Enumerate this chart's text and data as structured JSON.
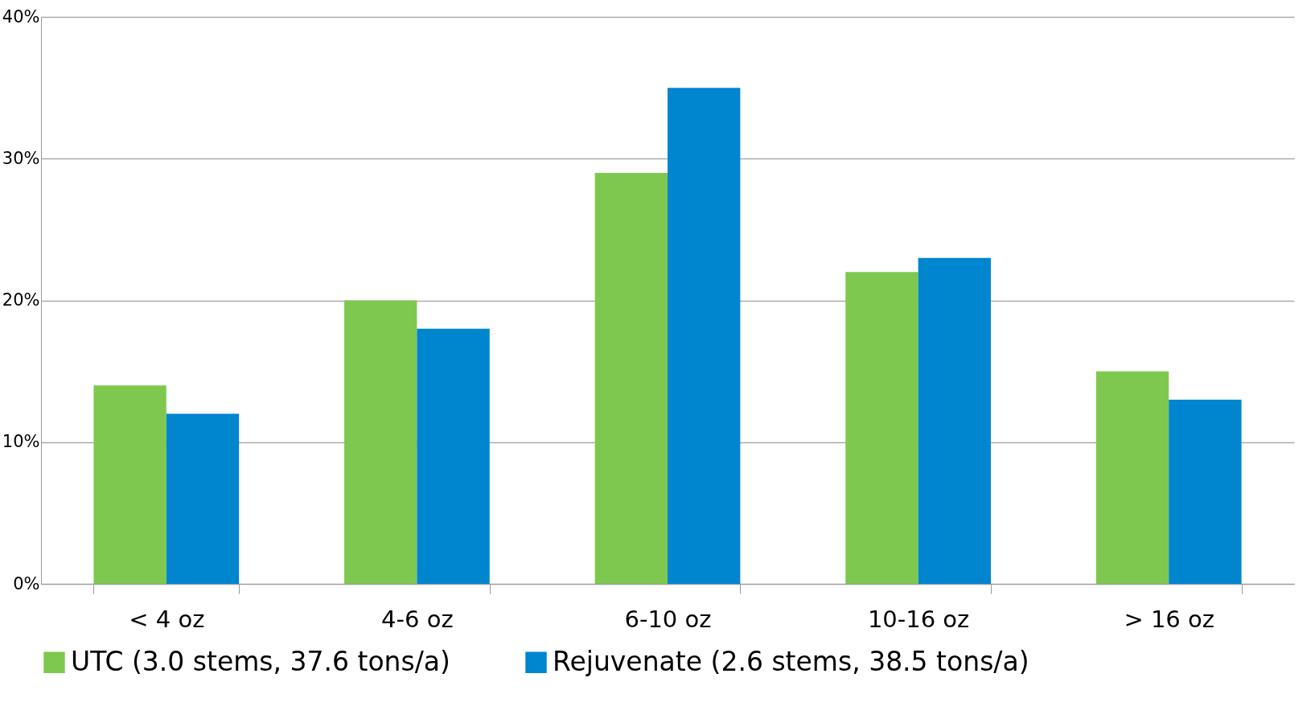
{
  "chart_data": {
    "type": "bar",
    "categories": [
      "< 4 oz",
      "4-6 oz",
      "6-10 oz",
      "10-16 oz",
      "> 16 oz"
    ],
    "series": [
      {
        "name": "UTC (3.0 stems, 37.6 tons/a)",
        "color": "#7ec850",
        "values": [
          14,
          20,
          29,
          22,
          15
        ]
      },
      {
        "name": "Rejuvenate (2.6 stems, 38.5 tons/a)",
        "color": "#0085cf",
        "values": [
          12,
          18,
          35,
          23,
          13
        ]
      }
    ],
    "ylim": [
      0,
      40
    ],
    "yticks": [
      {
        "value": 0,
        "label": "0%"
      },
      {
        "value": 10,
        "label": "10%"
      },
      {
        "value": 20,
        "label": "20%"
      },
      {
        "value": 30,
        "label": "30%"
      },
      {
        "value": 40,
        "label": "40%"
      }
    ],
    "grid": "y",
    "legend": "bottom"
  }
}
